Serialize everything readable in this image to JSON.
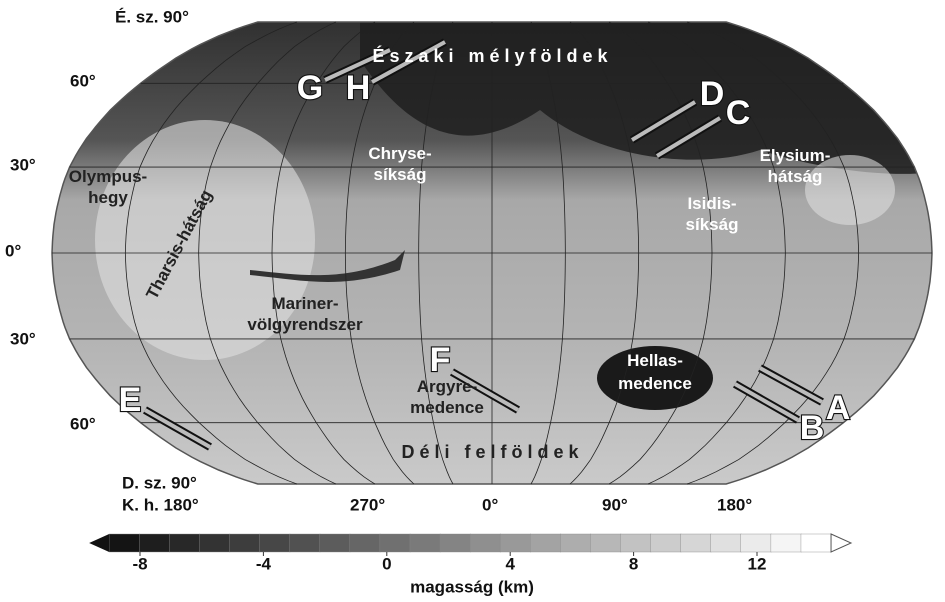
{
  "map": {
    "lat_labels": [
      "É. sz. 90°",
      "60°",
      "30°",
      "0°",
      "30°",
      "60°",
      "D. sz. 90°"
    ],
    "lon_labels": [
      "K. h. 180°",
      "270°",
      "0°",
      "90°",
      "180°"
    ],
    "regions": {
      "north": "É s z a k i   m é l y f ö l d e k",
      "south": "D é l i   f e l f ö l d e k",
      "olympus": [
        "Olympus-",
        "hegy"
      ],
      "tharsis": "Tharsis-hátság",
      "chryse": [
        "Chryse-",
        "síkság"
      ],
      "mariner": [
        "Mariner-",
        "völgyrendszer"
      ],
      "argyre": [
        "Argyre-",
        "medence"
      ],
      "hellas": [
        "Hellas-",
        "medence"
      ],
      "isidis": [
        "Isidis-",
        "síkság"
      ],
      "elysium": [
        "Elysium-",
        "hátság"
      ]
    },
    "markers": [
      "A",
      "B",
      "C",
      "D",
      "E",
      "F",
      "G",
      "H"
    ]
  },
  "colorbar": {
    "ticks": [
      -8,
      -4,
      0,
      4,
      8,
      12
    ],
    "label": "magasság (km)"
  }
}
